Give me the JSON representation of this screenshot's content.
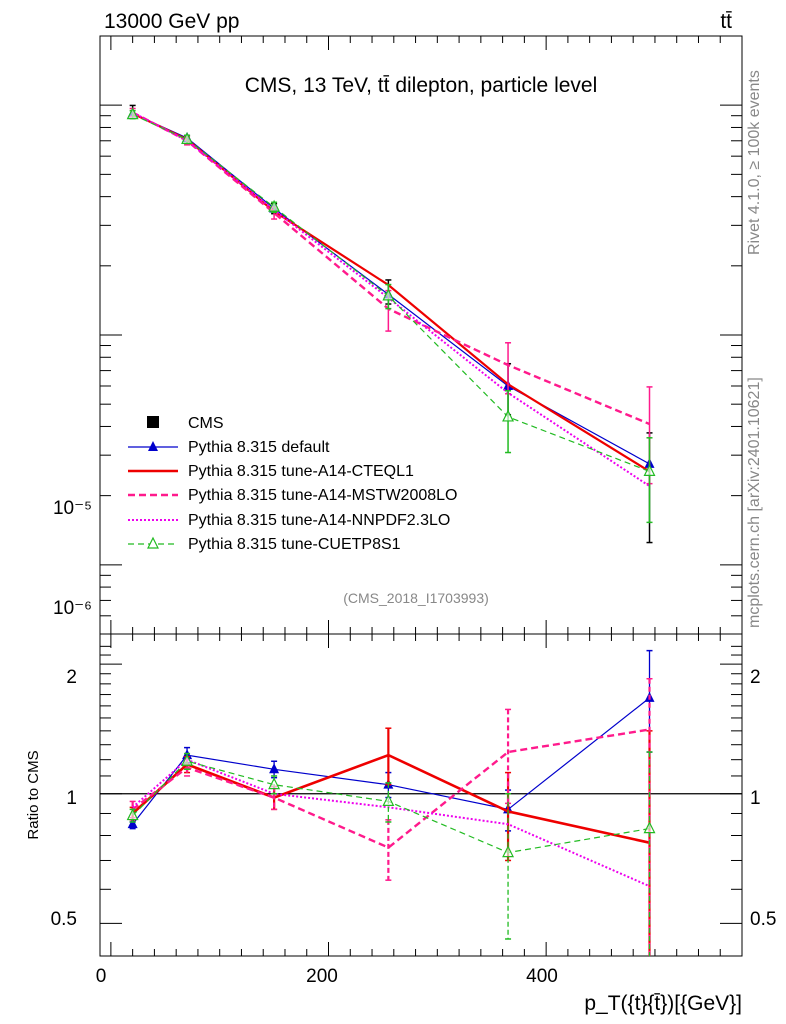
{
  "header": {
    "left": "13000 GeV pp",
    "right": "tt̄"
  },
  "side_labels": {
    "rivet": "Rivet 4.1.0, ≥ 100k events",
    "mcplots": "mcplots.cern.ch [arXiv:2401.10621]"
  },
  "chart_data": [
    {
      "type": "line",
      "panel": "main",
      "title": "CMS, 13 TeV, tt̄ dilepton, particle level",
      "analysis_id": "(CMS_2018_I1703993)",
      "xlabel": "p_T({t}{t̄})[{GeV}]",
      "yscale": "log",
      "ylim": [
        5e-07,
        0.0002
      ],
      "y_tick_labels": [
        "10⁻⁵",
        "10⁻⁶"
      ],
      "x": [
        20,
        70,
        150,
        255,
        365,
        495
      ],
      "series": [
        {
          "name": "CMS",
          "style": "data",
          "color": "#000000",
          "values": [
            9.5e-05,
            7.1e-05,
            3.55e-05,
            1.55e-05,
            6e-06,
            2.5e-06
          ],
          "err_up": [
            0.05,
            0.04,
            0.05,
            0.12,
            0.25,
            0.5
          ],
          "err_dn": [
            0.05,
            0.04,
            0.05,
            0.12,
            0.25,
            0.5
          ]
        },
        {
          "name": "Pythia 8.315 default",
          "style": "solid-thin",
          "color": "#0000cc",
          "marker": "triangle-filled",
          "values": [
            9.2e-05,
            7.2e-05,
            3.55e-05,
            1.5e-05,
            6e-06,
            2.75e-06
          ]
        },
        {
          "name": "Pythia 8.315 tune-A14-CTEQL1",
          "style": "solid-thick",
          "color": "#ee0000",
          "values": [
            9.2e-05,
            7.1e-05,
            3.45e-05,
            1.65e-05,
            6.1e-06,
            2.55e-06
          ]
        },
        {
          "name": "Pythia 8.315 tune-A14-MSTW2008LO",
          "style": "dashed",
          "color": "#ff1a8c",
          "values": [
            9.3e-05,
            7e-05,
            3.4e-05,
            1.3e-05,
            7.4e-06,
            4.1e-06
          ],
          "err_up": [
            0.04,
            0.04,
            0.06,
            0.2,
            0.25,
            0.45
          ],
          "err_dn": [
            0.04,
            0.04,
            0.06,
            0.2,
            0.25,
            0.45
          ]
        },
        {
          "name": "Pythia 8.315 tune-A14-NNPDF2.3LO",
          "style": "dotted",
          "color": "#ee00ee",
          "values": [
            9.3e-05,
            7e-05,
            3.5e-05,
            1.45e-05,
            5.6e-06,
            2.2e-06
          ]
        },
        {
          "name": "Pythia 8.315 tune-CUETP8S1",
          "style": "dashed-thin",
          "color": "#22bb22",
          "marker": "triangle-open",
          "values": [
            9.1e-05,
            7.1e-05,
            3.6e-05,
            1.48e-05,
            4.4e-06,
            2.55e-06
          ],
          "err_up": [
            0.04,
            0.04,
            0.05,
            0.12,
            0.3,
            0.4
          ],
          "err_dn": [
            0.04,
            0.04,
            0.05,
            0.12,
            0.3,
            0.4
          ]
        }
      ]
    },
    {
      "type": "line",
      "panel": "ratio",
      "ylabel": "Ratio to CMS",
      "yscale": "log",
      "ylim": [
        0.42,
        2.35
      ],
      "y_ticks": [
        0.5,
        1,
        2
      ],
      "y_tick_labels": [
        "0.5",
        "1",
        "2"
      ],
      "xlim": [
        -10,
        580
      ],
      "x_ticks": [
        0,
        200,
        400
      ],
      "x_tick_labels": [
        "0",
        "200",
        "400"
      ],
      "x": [
        20,
        70,
        150,
        255,
        365,
        495
      ],
      "series": [
        {
          "name": "CMS",
          "color": "#000000",
          "values": [
            1,
            1,
            1,
            1,
            1,
            1
          ]
        },
        {
          "name": "Pythia 8.315 default",
          "color": "#0000cc",
          "values": [
            0.85,
            1.23,
            1.14,
            1.05,
            0.92,
            1.67
          ],
          "err_up": [
            0.86,
            1.28,
            1.19,
            1.12,
            1.02,
            2.15
          ],
          "err_dn": [
            0.83,
            1.18,
            1.09,
            0.98,
            0.82,
            1.25
          ]
        },
        {
          "name": "Pythia 8.315 tune-A14-CTEQL1",
          "color": "#ee0000",
          "values": [
            0.9,
            1.17,
            0.98,
            1.23,
            0.91,
            0.77
          ],
          "err_up": [
            0.93,
            1.22,
            1.04,
            1.42,
            1.12,
            1.4
          ],
          "err_dn": [
            0.87,
            1.12,
            0.92,
            1.05,
            0.7,
            0.4
          ]
        },
        {
          "name": "Pythia 8.315 tune-A14-MSTW2008LO",
          "color": "#ff1a8c",
          "values": [
            0.92,
            1.15,
            0.98,
            0.75,
            1.25,
            1.41
          ],
          "err_up": [
            0.96,
            1.2,
            1.04,
            0.87,
            1.57,
            1.85
          ],
          "err_dn": [
            0.88,
            1.1,
            0.92,
            0.63,
            0.95,
            0.4
          ]
        },
        {
          "name": "Pythia 8.315 tune-A14-NNPDF2.3LO",
          "color": "#ee00ee",
          "values": [
            0.93,
            1.2,
            1.0,
            0.93,
            0.85,
            0.61
          ]
        },
        {
          "name": "Pythia 8.315 tune-CUETP8S1",
          "color": "#22bb22",
          "values": [
            0.89,
            1.19,
            1.05,
            0.96,
            0.73,
            0.83
          ],
          "err_up": [
            0.92,
            1.24,
            1.1,
            1.06,
            1.0,
            1.25
          ],
          "err_dn": [
            0.86,
            1.14,
            1.0,
            0.86,
            0.46,
            0.4
          ]
        }
      ]
    }
  ]
}
